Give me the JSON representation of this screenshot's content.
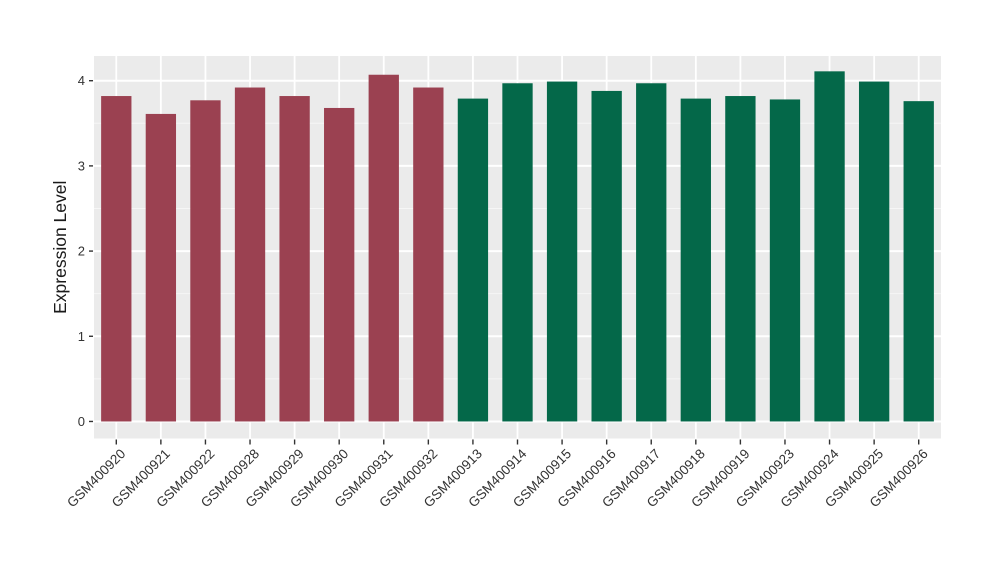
{
  "figure": {
    "background": "#ffffff",
    "panel_background": "#ebebeb",
    "grid_major_color": "#ffffff",
    "grid_minor_color": "#f6f6f6",
    "tick_mark_color": "#333333",
    "axis_text_color": "#333333",
    "axis_title_color": "#1a1a1a"
  },
  "chart_data": {
    "type": "bar",
    "title": "",
    "xlabel": "",
    "ylabel": "Expression Level",
    "categories": [
      "GSM400920",
      "GSM400921",
      "GSM400922",
      "GSM400928",
      "GSM400929",
      "GSM400930",
      "GSM400931",
      "GSM400932",
      "GSM400913",
      "GSM400914",
      "GSM400915",
      "GSM400916",
      "GSM400917",
      "GSM400918",
      "GSM400919",
      "GSM400923",
      "GSM400924",
      "GSM400925",
      "GSM400926"
    ],
    "values": [
      3.82,
      3.61,
      3.77,
      3.92,
      3.82,
      3.68,
      4.07,
      3.92,
      3.79,
      3.97,
      3.99,
      3.88,
      3.97,
      3.79,
      3.82,
      3.78,
      4.11,
      3.99,
      3.76
    ],
    "groups": [
      "maroon",
      "maroon",
      "maroon",
      "maroon",
      "maroon",
      "maroon",
      "maroon",
      "maroon",
      "green",
      "green",
      "green",
      "green",
      "green",
      "green",
      "green",
      "green",
      "green",
      "green",
      "green"
    ],
    "group_colors": {
      "maroon": "#9B4151",
      "green": "#046849"
    },
    "yticks": [
      0,
      1,
      2,
      3,
      4
    ],
    "yticks_minor": [
      0.5,
      1.5,
      2.5,
      3.5
    ],
    "ylim": [
      -0.2,
      4.29
    ],
    "grid": "horizontal major+minor, vertical major at category centers",
    "legend": "none",
    "x_tick_label_angle": -45,
    "bar_width_fraction": 0.68
  }
}
